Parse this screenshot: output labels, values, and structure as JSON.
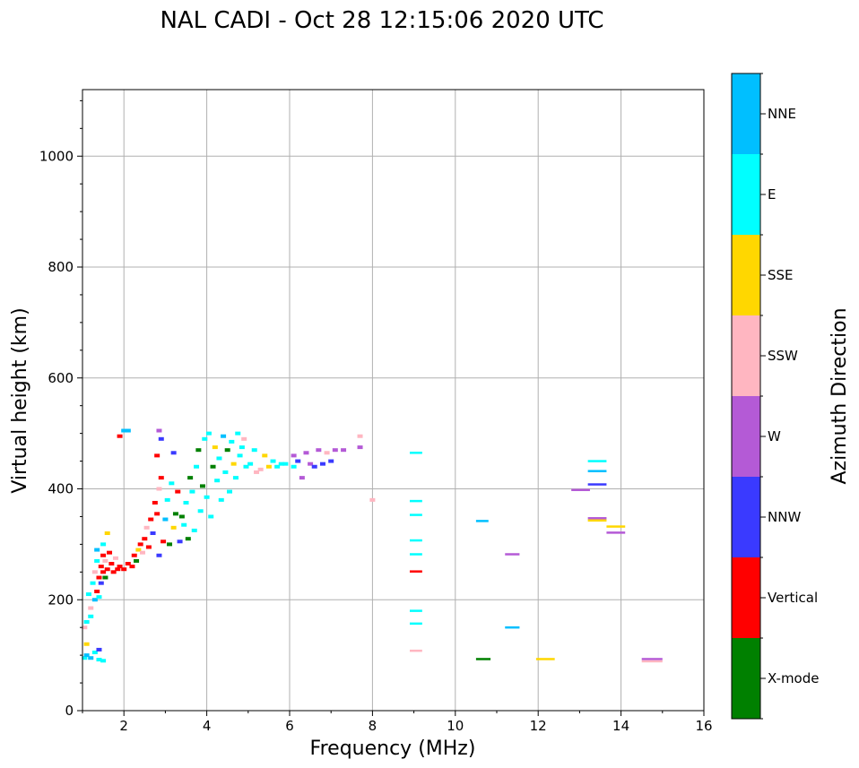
{
  "chart_data": {
    "type": "scatter",
    "title": "NAL CADI - Oct 28 12:15:06 2020 UTC",
    "xlabel": "Frequency (MHz)",
    "ylabel": "Virtual height (km)",
    "xlim": [
      1,
      16
    ],
    "ylim": [
      0,
      1120
    ],
    "x_ticks": [
      2,
      4,
      6,
      8,
      10,
      12,
      14,
      16
    ],
    "y_ticks": [
      0,
      200,
      400,
      600,
      800,
      1000
    ],
    "x_tick_labels": [
      "2",
      "4",
      "6",
      "8",
      "10",
      "12",
      "14",
      "16"
    ],
    "y_tick_labels": [
      "0",
      "200",
      "400",
      "600",
      "800",
      "1000"
    ],
    "x_minor_ticks": [
      1,
      3,
      5,
      7,
      9,
      11,
      13,
      15
    ],
    "y_minor_ticks": [
      50,
      100,
      150,
      250,
      300,
      350,
      450,
      500,
      550,
      650,
      700,
      750,
      850,
      900,
      950,
      1050,
      1100
    ],
    "grid": true,
    "colorbar": {
      "title": "Azimuth Direction",
      "categories": [
        {
          "label": "X-mode",
          "color": "#008000"
        },
        {
          "label": "Vertical",
          "color": "#ff0000"
        },
        {
          "label": "NNW",
          "color": "#3a3aff"
        },
        {
          "label": "W",
          "color": "#b45ad6"
        },
        {
          "label": "SSW",
          "color": "#ffb6c1"
        },
        {
          "label": "SSE",
          "color": "#ffd700"
        },
        {
          "label": "E",
          "color": "#00ffff"
        },
        {
          "label": "NNE",
          "color": "#00bfff"
        }
      ]
    },
    "points": [
      {
        "x": 1.05,
        "y": 95,
        "c": "E"
      },
      {
        "x": 1.1,
        "y": 120,
        "c": "SSE"
      },
      {
        "x": 1.05,
        "y": 150,
        "c": "SSW"
      },
      {
        "x": 1.1,
        "y": 100,
        "c": "NNE"
      },
      {
        "x": 1.15,
        "y": 210,
        "c": "E"
      },
      {
        "x": 1.2,
        "y": 185,
        "c": "SSW"
      },
      {
        "x": 1.25,
        "y": 230,
        "c": "E"
      },
      {
        "x": 1.3,
        "y": 200,
        "c": "NNE"
      },
      {
        "x": 1.3,
        "y": 250,
        "c": "SSW"
      },
      {
        "x": 1.35,
        "y": 270,
        "c": "E"
      },
      {
        "x": 1.35,
        "y": 215,
        "c": "Vertical"
      },
      {
        "x": 1.4,
        "y": 240,
        "c": "Vertical"
      },
      {
        "x": 1.4,
        "y": 205,
        "c": "E"
      },
      {
        "x": 1.45,
        "y": 260,
        "c": "Vertical"
      },
      {
        "x": 1.45,
        "y": 230,
        "c": "NNW"
      },
      {
        "x": 1.5,
        "y": 280,
        "c": "Vertical"
      },
      {
        "x": 1.5,
        "y": 250,
        "c": "Vertical"
      },
      {
        "x": 1.55,
        "y": 240,
        "c": "X-mode"
      },
      {
        "x": 1.55,
        "y": 270,
        "c": "SSW"
      },
      {
        "x": 1.6,
        "y": 255,
        "c": "Vertical"
      },
      {
        "x": 1.6,
        "y": 320,
        "c": "SSE"
      },
      {
        "x": 1.65,
        "y": 285,
        "c": "Vertical"
      },
      {
        "x": 1.7,
        "y": 265,
        "c": "Vertical"
      },
      {
        "x": 1.75,
        "y": 250,
        "c": "Vertical"
      },
      {
        "x": 1.8,
        "y": 275,
        "c": "SSW"
      },
      {
        "x": 1.85,
        "y": 255,
        "c": "Vertical"
      },
      {
        "x": 1.9,
        "y": 260,
        "c": "Vertical"
      },
      {
        "x": 1.2,
        "y": 95,
        "c": "NNE"
      },
      {
        "x": 1.3,
        "y": 105,
        "c": "E"
      },
      {
        "x": 1.4,
        "y": 92,
        "c": "E"
      },
      {
        "x": 1.5,
        "y": 90,
        "c": "E"
      },
      {
        "x": 1.4,
        "y": 110,
        "c": "NNW"
      },
      {
        "x": 1.2,
        "y": 170,
        "c": "E"
      },
      {
        "x": 1.1,
        "y": 160,
        "c": "E"
      },
      {
        "x": 1.5,
        "y": 300,
        "c": "E"
      },
      {
        "x": 1.35,
        "y": 290,
        "c": "NNE"
      },
      {
        "x": 2.0,
        "y": 255,
        "c": "Vertical"
      },
      {
        "x": 2.1,
        "y": 265,
        "c": "Vertical"
      },
      {
        "x": 2.2,
        "y": 260,
        "c": "Vertical"
      },
      {
        "x": 2.25,
        "y": 280,
        "c": "Vertical"
      },
      {
        "x": 2.3,
        "y": 270,
        "c": "X-mode"
      },
      {
        "x": 2.35,
        "y": 290,
        "c": "SSE"
      },
      {
        "x": 2.4,
        "y": 300,
        "c": "Vertical"
      },
      {
        "x": 2.45,
        "y": 285,
        "c": "SSW"
      },
      {
        "x": 2.5,
        "y": 310,
        "c": "Vertical"
      },
      {
        "x": 2.55,
        "y": 330,
        "c": "SSW"
      },
      {
        "x": 2.6,
        "y": 295,
        "c": "Vertical"
      },
      {
        "x": 2.65,
        "y": 345,
        "c": "Vertical"
      },
      {
        "x": 2.7,
        "y": 320,
        "c": "NNW"
      },
      {
        "x": 2.75,
        "y": 375,
        "c": "Vertical"
      },
      {
        "x": 2.8,
        "y": 355,
        "c": "Vertical"
      },
      {
        "x": 2.85,
        "y": 400,
        "c": "SSW"
      },
      {
        "x": 2.9,
        "y": 420,
        "c": "Vertical"
      },
      {
        "x": 2.95,
        "y": 305,
        "c": "Vertical"
      },
      {
        "x": 2.85,
        "y": 280,
        "c": "NNW"
      },
      {
        "x": 2.8,
        "y": 460,
        "c": "Vertical"
      },
      {
        "x": 2.85,
        "y": 505,
        "c": "W"
      },
      {
        "x": 2.9,
        "y": 490,
        "c": "NNW"
      },
      {
        "x": 3.0,
        "y": 345,
        "c": "NNE"
      },
      {
        "x": 3.05,
        "y": 380,
        "c": "E"
      },
      {
        "x": 3.1,
        "y": 300,
        "c": "X-mode"
      },
      {
        "x": 3.15,
        "y": 410,
        "c": "E"
      },
      {
        "x": 3.2,
        "y": 330,
        "c": "SSE"
      },
      {
        "x": 3.2,
        "y": 465,
        "c": "NNW"
      },
      {
        "x": 3.25,
        "y": 355,
        "c": "X-mode"
      },
      {
        "x": 3.3,
        "y": 395,
        "c": "Vertical"
      },
      {
        "x": 3.35,
        "y": 305,
        "c": "NNW"
      },
      {
        "x": 3.4,
        "y": 350,
        "c": "X-mode"
      },
      {
        "x": 3.45,
        "y": 335,
        "c": "E"
      },
      {
        "x": 3.5,
        "y": 375,
        "c": "E"
      },
      {
        "x": 3.55,
        "y": 310,
        "c": "X-mode"
      },
      {
        "x": 3.6,
        "y": 420,
        "c": "X-mode"
      },
      {
        "x": 3.65,
        "y": 395,
        "c": "E"
      },
      {
        "x": 3.7,
        "y": 325,
        "c": "E"
      },
      {
        "x": 3.75,
        "y": 440,
        "c": "E"
      },
      {
        "x": 3.8,
        "y": 470,
        "c": "X-mode"
      },
      {
        "x": 3.85,
        "y": 360,
        "c": "E"
      },
      {
        "x": 3.9,
        "y": 405,
        "c": "X-mode"
      },
      {
        "x": 3.95,
        "y": 490,
        "c": "E"
      },
      {
        "x": 4.0,
        "y": 385,
        "c": "E"
      },
      {
        "x": 4.05,
        "y": 500,
        "c": "E"
      },
      {
        "x": 4.1,
        "y": 350,
        "c": "E"
      },
      {
        "x": 4.15,
        "y": 440,
        "c": "X-mode"
      },
      {
        "x": 4.2,
        "y": 475,
        "c": "SSE"
      },
      {
        "x": 4.25,
        "y": 415,
        "c": "E"
      },
      {
        "x": 4.3,
        "y": 455,
        "c": "E"
      },
      {
        "x": 4.35,
        "y": 380,
        "c": "E"
      },
      {
        "x": 4.4,
        "y": 495,
        "c": "NNE"
      },
      {
        "x": 4.45,
        "y": 430,
        "c": "E"
      },
      {
        "x": 4.5,
        "y": 470,
        "c": "X-mode"
      },
      {
        "x": 4.55,
        "y": 395,
        "c": "E"
      },
      {
        "x": 4.6,
        "y": 485,
        "c": "E"
      },
      {
        "x": 4.65,
        "y": 445,
        "c": "SSE"
      },
      {
        "x": 4.7,
        "y": 420,
        "c": "E"
      },
      {
        "x": 4.75,
        "y": 500,
        "c": "E"
      },
      {
        "x": 4.8,
        "y": 460,
        "c": "E"
      },
      {
        "x": 4.85,
        "y": 475,
        "c": "E"
      },
      {
        "x": 4.9,
        "y": 490,
        "c": "SSW"
      },
      {
        "x": 4.95,
        "y": 440,
        "c": "E"
      },
      {
        "x": 5.05,
        "y": 445,
        "c": "E"
      },
      {
        "x": 5.15,
        "y": 470,
        "c": "E"
      },
      {
        "x": 5.2,
        "y": 430,
        "c": "SSW"
      },
      {
        "x": 5.3,
        "y": 435,
        "c": "SSW"
      },
      {
        "x": 5.4,
        "y": 460,
        "c": "SSE"
      },
      {
        "x": 5.5,
        "y": 440,
        "c": "SSE"
      },
      {
        "x": 5.6,
        "y": 450,
        "c": "E"
      },
      {
        "x": 5.7,
        "y": 440,
        "c": "E"
      },
      {
        "x": 5.8,
        "y": 445,
        "c": "E"
      },
      {
        "x": 5.9,
        "y": 445,
        "c": "E"
      },
      {
        "x": 6.1,
        "y": 440,
        "c": "E"
      },
      {
        "x": 6.1,
        "y": 460,
        "c": "W"
      },
      {
        "x": 6.2,
        "y": 450,
        "c": "NNW"
      },
      {
        "x": 6.3,
        "y": 420,
        "c": "W"
      },
      {
        "x": 6.4,
        "y": 465,
        "c": "W"
      },
      {
        "x": 6.5,
        "y": 445,
        "c": "W"
      },
      {
        "x": 6.6,
        "y": 440,
        "c": "NNW"
      },
      {
        "x": 6.7,
        "y": 470,
        "c": "W"
      },
      {
        "x": 6.8,
        "y": 445,
        "c": "NNW"
      },
      {
        "x": 6.9,
        "y": 465,
        "c": "SSW"
      },
      {
        "x": 7.0,
        "y": 450,
        "c": "NNW"
      },
      {
        "x": 7.1,
        "y": 470,
        "c": "W"
      },
      {
        "x": 7.3,
        "y": 470,
        "c": "W"
      },
      {
        "x": 7.7,
        "y": 495,
        "c": "SSW"
      },
      {
        "x": 7.7,
        "y": 475,
        "c": "W"
      },
      {
        "x": 8.0,
        "y": 380,
        "c": "SSW"
      },
      {
        "x": 2.0,
        "y": 505,
        "c": "NNE"
      },
      {
        "x": 1.9,
        "y": 495,
        "c": "Vertical"
      },
      {
        "x": 2.1,
        "y": 505,
        "c": "NNE"
      }
    ],
    "segments": [
      {
        "x0": 8.9,
        "x1": 9.2,
        "y": 465,
        "c": "E"
      },
      {
        "x0": 8.9,
        "x1": 9.2,
        "y": 378,
        "c": "E"
      },
      {
        "x0": 8.9,
        "x1": 9.2,
        "y": 353,
        "c": "E"
      },
      {
        "x0": 8.9,
        "x1": 9.2,
        "y": 307,
        "c": "E"
      },
      {
        "x0": 8.9,
        "x1": 9.2,
        "y": 282,
        "c": "E"
      },
      {
        "x0": 8.9,
        "x1": 9.2,
        "y": 251,
        "c": "Vertical"
      },
      {
        "x0": 8.9,
        "x1": 9.2,
        "y": 180,
        "c": "E"
      },
      {
        "x0": 8.9,
        "x1": 9.2,
        "y": 157,
        "c": "E"
      },
      {
        "x0": 8.9,
        "x1": 9.2,
        "y": 108,
        "c": "SSW"
      },
      {
        "x0": 10.5,
        "x1": 10.8,
        "y": 342,
        "c": "NNE"
      },
      {
        "x0": 10.5,
        "x1": 10.85,
        "y": 93,
        "c": "X-mode"
      },
      {
        "x0": 11.2,
        "x1": 11.55,
        "y": 282,
        "c": "W"
      },
      {
        "x0": 11.2,
        "x1": 11.55,
        "y": 150,
        "c": "NNE"
      },
      {
        "x0": 11.95,
        "x1": 12.4,
        "y": 93,
        "c": "SSE"
      },
      {
        "x0": 12.8,
        "x1": 13.25,
        "y": 398,
        "c": "W"
      },
      {
        "x0": 13.2,
        "x1": 13.65,
        "y": 450,
        "c": "E"
      },
      {
        "x0": 13.2,
        "x1": 13.65,
        "y": 432,
        "c": "NNE"
      },
      {
        "x0": 13.2,
        "x1": 13.65,
        "y": 408,
        "c": "NNW"
      },
      {
        "x0": 13.2,
        "x1": 13.65,
        "y": 347,
        "c": "W"
      },
      {
        "x0": 13.2,
        "x1": 13.65,
        "y": 343,
        "c": "SSE"
      },
      {
        "x0": 13.65,
        "x1": 14.1,
        "y": 332,
        "c": "SSE"
      },
      {
        "x0": 13.65,
        "x1": 14.1,
        "y": 321,
        "c": "W"
      },
      {
        "x0": 14.5,
        "x1": 15.0,
        "y": 93,
        "c": "W"
      },
      {
        "x0": 14.5,
        "x1": 15.0,
        "y": 89,
        "c": "SSW"
      }
    ]
  }
}
